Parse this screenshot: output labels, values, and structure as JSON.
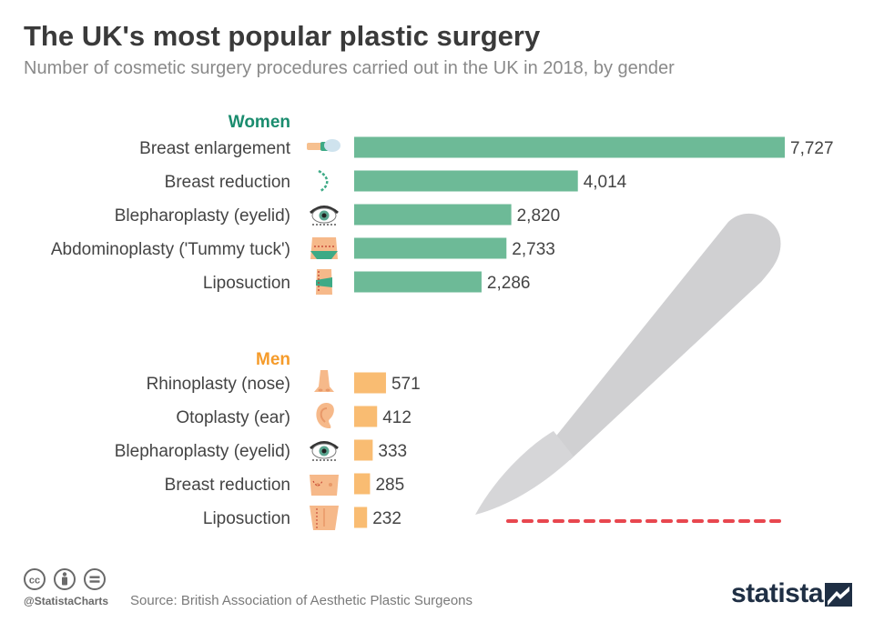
{
  "header": {
    "title": "The UK's most popular plastic surgery",
    "subtitle": "Number of cosmetic surgery procedures carried out in the UK in 2018, by gender"
  },
  "colors": {
    "women": "#6dba97",
    "men": "#f9bc72",
    "women_label": "#1a8c6e",
    "men_label": "#f59b2a",
    "text": "#444444",
    "scalpel": "#d0d0d2",
    "dash": "#e8474f"
  },
  "chart_data": {
    "type": "bar",
    "orientation": "horizontal",
    "title": "The UK's most popular plastic surgery",
    "subtitle": "Number of cosmetic surgery procedures carried out in the UK in 2018, by gender",
    "groups": [
      {
        "name": "Women",
        "color": "#6dba97",
        "icons": [
          "breast-enlargement-icon",
          "breast-reduction-icon",
          "eye-icon",
          "abdomen-icon",
          "hip-icon"
        ],
        "categories": [
          "Breast enlargement",
          "Breast reduction",
          "Blepharoplasty (eyelid)",
          "Abdominoplasty ('Tummy tuck')",
          "Liposuction"
        ],
        "values": [
          7727,
          4014,
          2820,
          2733,
          2286
        ],
        "labels": [
          "7,727",
          "4,014",
          "2,820",
          "2,733",
          "2,286"
        ]
      },
      {
        "name": "Men",
        "color": "#f9bc72",
        "icons": [
          "nose-icon",
          "ear-icon",
          "eye-icon",
          "chest-icon",
          "torso-icon"
        ],
        "categories": [
          "Rhinoplasty (nose)",
          "Otoplasty (ear)",
          "Blepharoplasty (eyelid)",
          "Breast reduction",
          "Liposuction"
        ],
        "values": [
          571,
          412,
          333,
          285,
          232
        ],
        "labels": [
          "571",
          "412",
          "333",
          "285",
          "232"
        ]
      }
    ],
    "xlim": [
      0,
      7727
    ],
    "grid": false,
    "xlabel": "",
    "ylabel": ""
  },
  "footer": {
    "handle": "@StatistaCharts",
    "source": "Source: British Association of Aesthetic Plastic Surgeons",
    "brand": "statista"
  }
}
